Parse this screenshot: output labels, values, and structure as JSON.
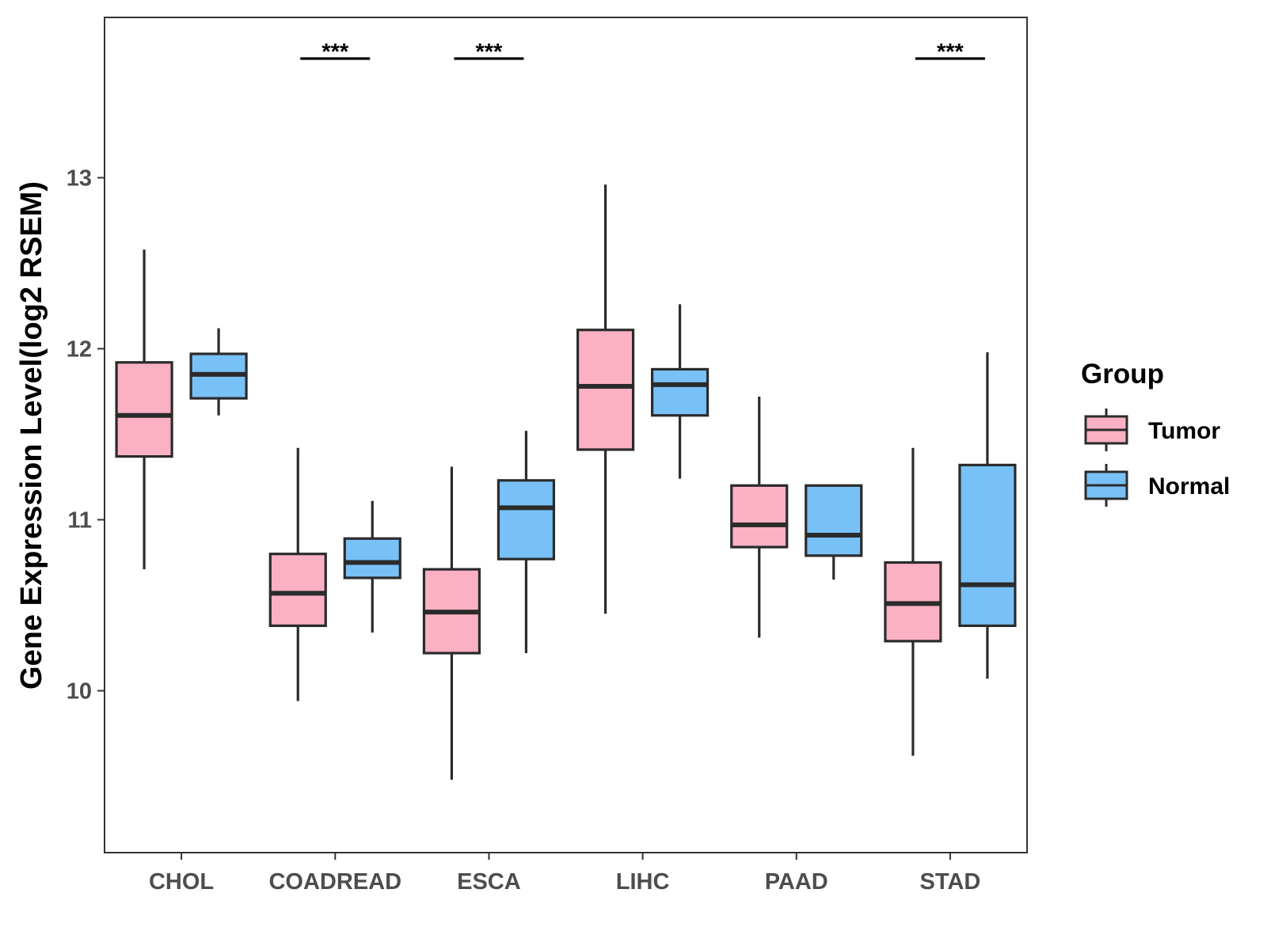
{
  "chart_data": {
    "type": "boxplot",
    "title": "",
    "xlabel": "",
    "ylabel": "Gene Expression Level(log2 RSEM)",
    "categories": [
      "CHOL",
      "COADREAD",
      "ESCA",
      "LIHC",
      "PAAD",
      "STAD"
    ],
    "ylim": [
      9.05,
      13.95
    ],
    "yticks": [
      10,
      11,
      12,
      13
    ],
    "ytick_labels": [
      "10",
      "11",
      "12",
      "13"
    ],
    "grid": false,
    "series": [
      {
        "name": "Tumor",
        "color": "#FBB1C3",
        "boxes": [
          {
            "whisker_low": 10.71,
            "q1": 11.37,
            "median": 11.61,
            "q3": 11.92,
            "whisker_high": 12.58
          },
          {
            "whisker_low": 9.94,
            "q1": 10.38,
            "median": 10.57,
            "q3": 10.8,
            "whisker_high": 11.42
          },
          {
            "whisker_low": 9.48,
            "q1": 10.22,
            "median": 10.46,
            "q3": 10.71,
            "whisker_high": 11.31
          },
          {
            "whisker_low": 10.45,
            "q1": 11.41,
            "median": 11.78,
            "q3": 12.11,
            "whisker_high": 12.96
          },
          {
            "whisker_low": 10.31,
            "q1": 10.84,
            "median": 10.97,
            "q3": 11.2,
            "whisker_high": 11.72
          },
          {
            "whisker_low": 9.62,
            "q1": 10.29,
            "median": 10.51,
            "q3": 10.75,
            "whisker_high": 11.42
          }
        ]
      },
      {
        "name": "Normal",
        "color": "#78C1F7",
        "boxes": [
          {
            "whisker_low": 11.61,
            "q1": 11.71,
            "median": 11.85,
            "q3": 11.97,
            "whisker_high": 12.12
          },
          {
            "whisker_low": 10.34,
            "q1": 10.66,
            "median": 10.75,
            "q3": 10.89,
            "whisker_high": 11.11
          },
          {
            "whisker_low": 10.22,
            "q1": 10.77,
            "median": 11.07,
            "q3": 11.23,
            "whisker_high": 11.52
          },
          {
            "whisker_low": 11.24,
            "q1": 11.61,
            "median": 11.79,
            "q3": 11.88,
            "whisker_high": 12.26
          },
          {
            "whisker_low": 10.65,
            "q1": 10.79,
            "median": 10.91,
            "q3": 11.2,
            "whisker_high": 11.2
          },
          {
            "whisker_low": 10.07,
            "q1": 10.38,
            "median": 10.62,
            "q3": 11.32,
            "whisker_high": 11.98
          }
        ]
      }
    ],
    "significance": [
      {
        "category": "COADREAD",
        "label": "***"
      },
      {
        "category": "ESCA",
        "label": "***"
      },
      {
        "category": "STAD",
        "label": "***"
      }
    ],
    "legend": {
      "title": "Group",
      "position": "right",
      "entries": [
        {
          "label": "Tumor",
          "color": "#FBB1C3"
        },
        {
          "label": "Normal",
          "color": "#78C1F7"
        }
      ]
    },
    "line_color": "#2b2b2b"
  }
}
